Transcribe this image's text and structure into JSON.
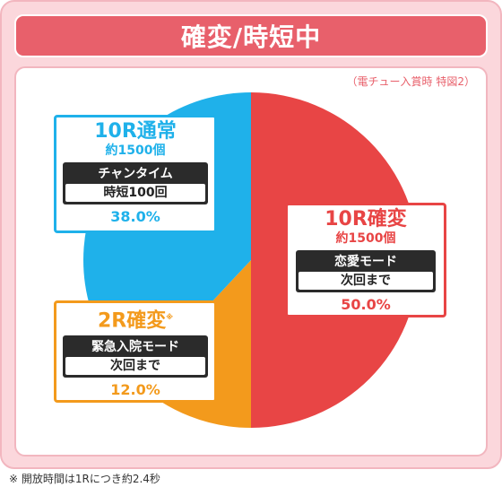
{
  "title": "確変/時短中",
  "note_top": "（電チュー入賞時 特図2）",
  "footnote": "※ 開放時間は1Rにつき約2.4秒",
  "chart_data": {
    "type": "pie",
    "slices": [
      {
        "name": "10R確変",
        "value": 50.0,
        "color": "#e84545",
        "border_color": "#e84545",
        "balls": "約1500個",
        "mode": "恋愛モード",
        "duration": "次回まで",
        "pct_label": "50.0%"
      },
      {
        "name": "2R確変",
        "value": 12.0,
        "color": "#f39a1c",
        "border_color": "#f39a1c",
        "balls": "",
        "mode": "緊急入院モード",
        "duration": "次回まで",
        "pct_label": "12.0%",
        "mark": "※"
      },
      {
        "name": "10R通常",
        "value": 38.0,
        "color": "#1fb1ea",
        "border_color": "#1fb1ea",
        "balls": "約1500個",
        "mode": "チャンタイム",
        "duration": "時短100回",
        "pct_label": "38.0%"
      }
    ]
  }
}
